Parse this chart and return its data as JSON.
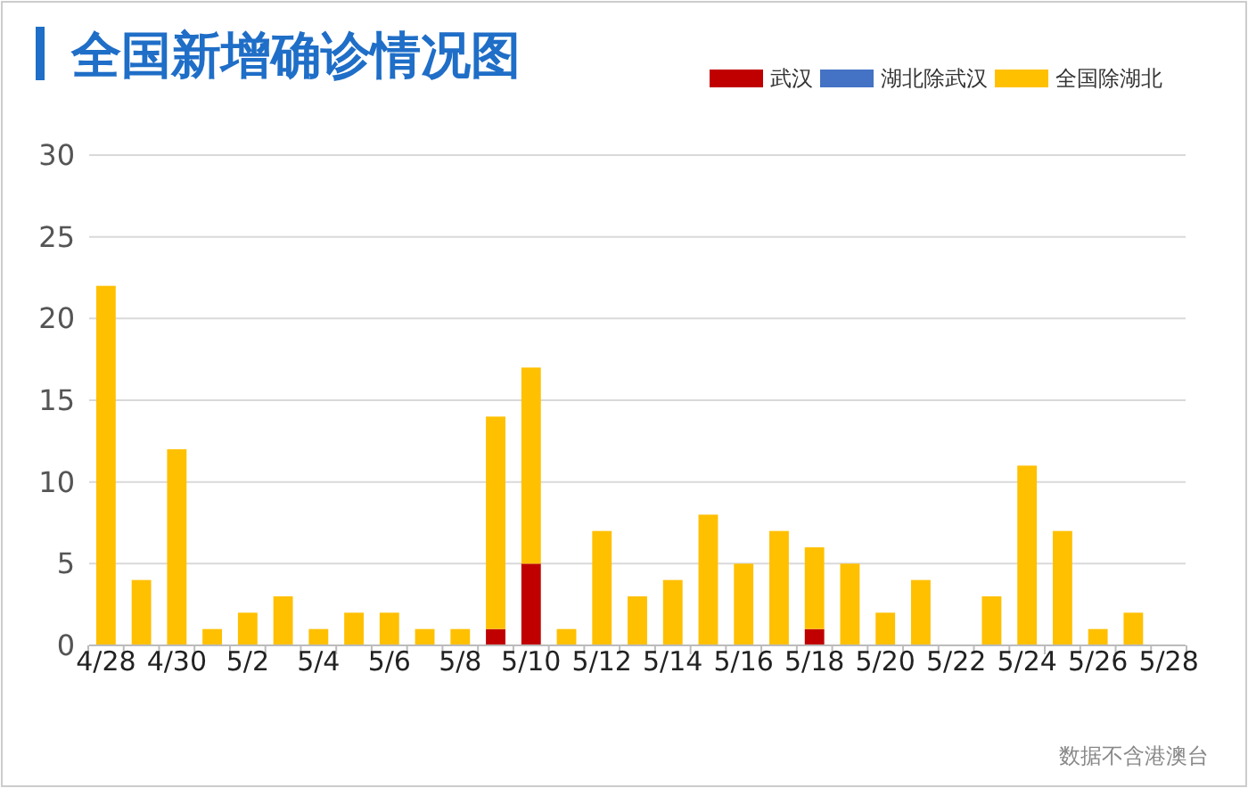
{
  "chart_data": {
    "type": "bar",
    "title": "全国新增确诊情况图",
    "stacked": true,
    "categories": [
      "4/28",
      null,
      "4/30",
      null,
      "5/2",
      null,
      "5/4",
      null,
      "5/6",
      null,
      "5/8",
      null,
      "5/10",
      null,
      "5/12",
      null,
      "5/14",
      null,
      "5/16",
      null,
      "5/18",
      null,
      "5/20",
      null,
      "5/22",
      null,
      "5/24",
      null,
      "5/26",
      null,
      "5/28"
    ],
    "series": [
      {
        "name": "武汉",
        "color": "#c00000",
        "values": [
          0,
          0,
          0,
          0,
          0,
          0,
          0,
          0,
          0,
          0,
          0,
          1,
          5,
          0,
          0,
          0,
          0,
          0,
          0,
          0,
          1,
          0,
          0,
          0,
          0,
          0,
          0,
          0,
          0,
          0,
          0
        ]
      },
      {
        "name": "湖北除武汉",
        "color": "#4472c4",
        "values": [
          0,
          0,
          0,
          0,
          0,
          0,
          0,
          0,
          0,
          0,
          0,
          0,
          0,
          0,
          0,
          0,
          0,
          0,
          0,
          0,
          0,
          0,
          0,
          0,
          0,
          0,
          0,
          0,
          0,
          0,
          0
        ]
      },
      {
        "name": "全国除湖北",
        "color": "#ffc000",
        "values": [
          22,
          4,
          12,
          1,
          2,
          3,
          1,
          2,
          2,
          1,
          1,
          13,
          12,
          1,
          7,
          3,
          4,
          8,
          5,
          7,
          5,
          5,
          2,
          4,
          0,
          3,
          11,
          7,
          1,
          2,
          0
        ]
      }
    ],
    "ylim": [
      0,
      30
    ],
    "yticks": [
      0,
      5,
      10,
      15,
      20,
      25,
      30
    ],
    "grid": "y",
    "legend": "top right",
    "annotations": [
      "数据不含港澳台"
    ]
  }
}
